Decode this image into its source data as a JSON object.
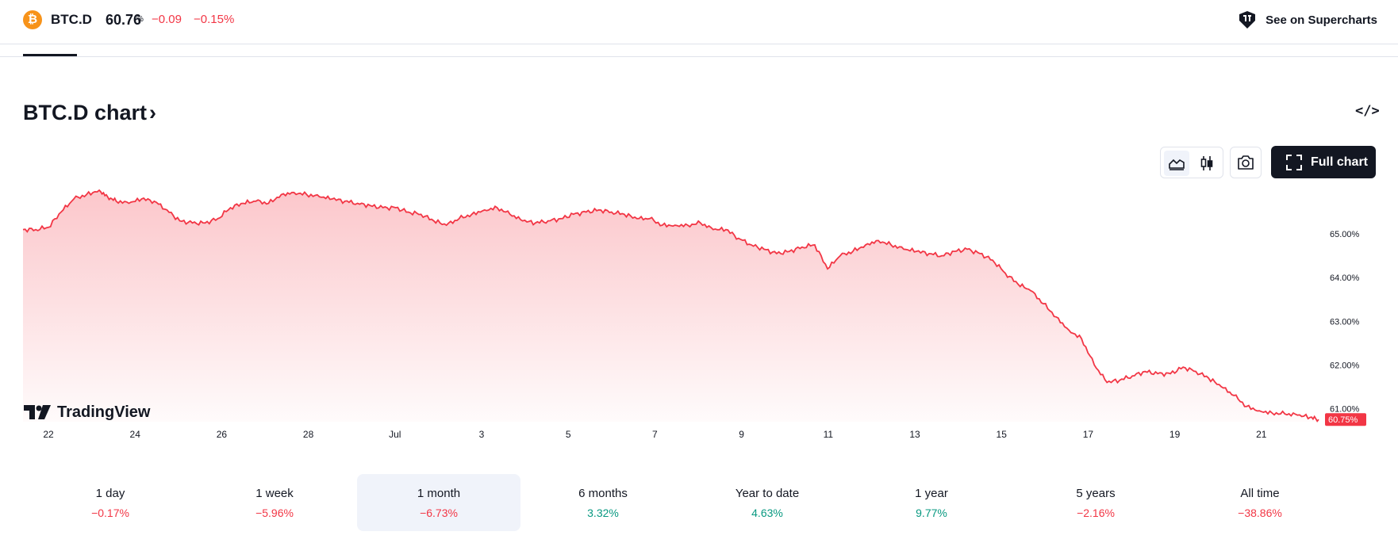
{
  "header": {
    "coin_icon_glyph": "₿",
    "symbol": "BTC.D",
    "price": "60.76",
    "price_unit": "%",
    "change": "−0.09",
    "change_percent": "−0.15%",
    "supercharts_link": "See on Supercharts",
    "supercharts_icon": "tradingview-cube-icon",
    "loss_color": "#f23645",
    "gain_color": "#089981"
  },
  "chart_header": {
    "title": "BTC.D chart",
    "title_chevron": "›",
    "embed_icon_glyph": "</>",
    "full_chart_label": "Full chart"
  },
  "toolbar": {
    "icons": [
      "area-chart-icon",
      "candlestick-icon",
      "camera-icon",
      "fullscreen-icon"
    ]
  },
  "branding": {
    "logo_text": "TradingView"
  },
  "chart_data": {
    "type": "area",
    "title": "",
    "xlabel": "",
    "ylabel": "",
    "x_tick_labels": [
      "22",
      "24",
      "26",
      "28",
      "Jul",
      "3",
      "5",
      "7",
      "9",
      "11",
      "13",
      "15",
      "17",
      "19",
      "21"
    ],
    "y_tick_labels": [
      "61.00%",
      "62.00%",
      "63.00%",
      "64.00%",
      "65.00%"
    ],
    "y_ticks": [
      61,
      62,
      63,
      64,
      65
    ],
    "ylim": [
      60.7,
      66.0
    ],
    "last_value_label": "60.75%",
    "last_value": 60.75,
    "line_color": "#f23645",
    "fill_color": "#f23645",
    "grid": false,
    "series": [
      {
        "x": [
          21.0,
          21.3,
          21.6,
          21.9,
          22.2,
          22.5,
          22.8,
          23.0,
          23.2,
          23.5,
          23.8,
          24.1,
          24.4,
          24.7,
          25.0,
          25.3,
          25.6,
          25.9,
          26.2,
          26.5,
          26.8,
          27.1,
          27.4,
          27.7,
          28.0,
          28.3,
          28.6,
          28.9,
          29.2,
          29.5,
          29.8,
          30.1,
          30.4,
          30.7,
          31.0,
          31.3,
          31.6,
          31.9,
          32.2,
          32.5,
          32.8,
          33.1,
          33.4,
          33.7,
          34.0,
          34.3,
          34.6,
          34.9,
          35.2,
          35.5,
          35.8,
          36.1,
          36.4,
          36.7,
          37.0,
          37.3,
          37.6,
          37.9,
          38.2,
          38.5,
          38.8,
          39.1,
          39.4,
          39.7,
          40.0,
          40.3,
          40.6,
          40.9,
          41.2,
          41.5,
          41.8,
          42.1,
          42.4,
          42.7,
          43.0,
          43.3,
          43.6,
          43.9,
          44.2,
          44.5,
          44.8,
          45.1,
          45.4,
          45.7,
          46.0,
          46.3,
          46.6,
          46.9,
          47.2,
          47.5,
          47.8,
          48.1,
          48.4,
          48.7,
          49.0,
          49.3,
          49.6,
          49.9,
          50.2,
          50.5,
          50.8,
          51.1,
          51.4,
          51.6
        ],
        "values": [
          65.1,
          65.1,
          65.15,
          65.5,
          65.8,
          65.9,
          66.0,
          65.85,
          65.75,
          65.7,
          65.8,
          65.75,
          65.55,
          65.3,
          65.25,
          65.25,
          65.35,
          65.6,
          65.7,
          65.75,
          65.7,
          65.9,
          65.95,
          65.9,
          65.85,
          65.8,
          65.75,
          65.7,
          65.65,
          65.6,
          65.6,
          65.5,
          65.45,
          65.3,
          65.2,
          65.35,
          65.45,
          65.55,
          65.6,
          65.45,
          65.3,
          65.25,
          65.3,
          65.35,
          65.45,
          65.5,
          65.55,
          65.5,
          65.45,
          65.35,
          65.35,
          65.2,
          65.2,
          65.2,
          65.25,
          65.1,
          65.1,
          64.9,
          64.75,
          64.65,
          64.55,
          64.6,
          64.7,
          64.75,
          64.2,
          64.5,
          64.6,
          64.75,
          64.85,
          64.75,
          64.65,
          64.6,
          64.55,
          64.5,
          64.6,
          64.65,
          64.55,
          64.4,
          64.1,
          63.85,
          63.7,
          63.4,
          63.1,
          62.8,
          62.6,
          62.0,
          61.6,
          61.65,
          61.75,
          61.85,
          61.8,
          61.8,
          61.95,
          61.85,
          61.7,
          61.5,
          61.3,
          61.05,
          60.95,
          60.9,
          60.88,
          60.85,
          60.8,
          60.75
        ]
      }
    ]
  },
  "periods": [
    {
      "label": "1 day",
      "value": "−0.17%",
      "trend": "neg",
      "selected": false
    },
    {
      "label": "1 week",
      "value": "−5.96%",
      "trend": "neg",
      "selected": false
    },
    {
      "label": "1 month",
      "value": "−6.73%",
      "trend": "neg",
      "selected": true
    },
    {
      "label": "6 months",
      "value": "3.32%",
      "trend": "pos",
      "selected": false
    },
    {
      "label": "Year to date",
      "value": "4.63%",
      "trend": "pos",
      "selected": false
    },
    {
      "label": "1 year",
      "value": "9.77%",
      "trend": "pos",
      "selected": false
    },
    {
      "label": "5 years",
      "value": "−2.16%",
      "trend": "neg",
      "selected": false
    },
    {
      "label": "All time",
      "value": "−38.86%",
      "trend": "neg",
      "selected": false
    }
  ]
}
